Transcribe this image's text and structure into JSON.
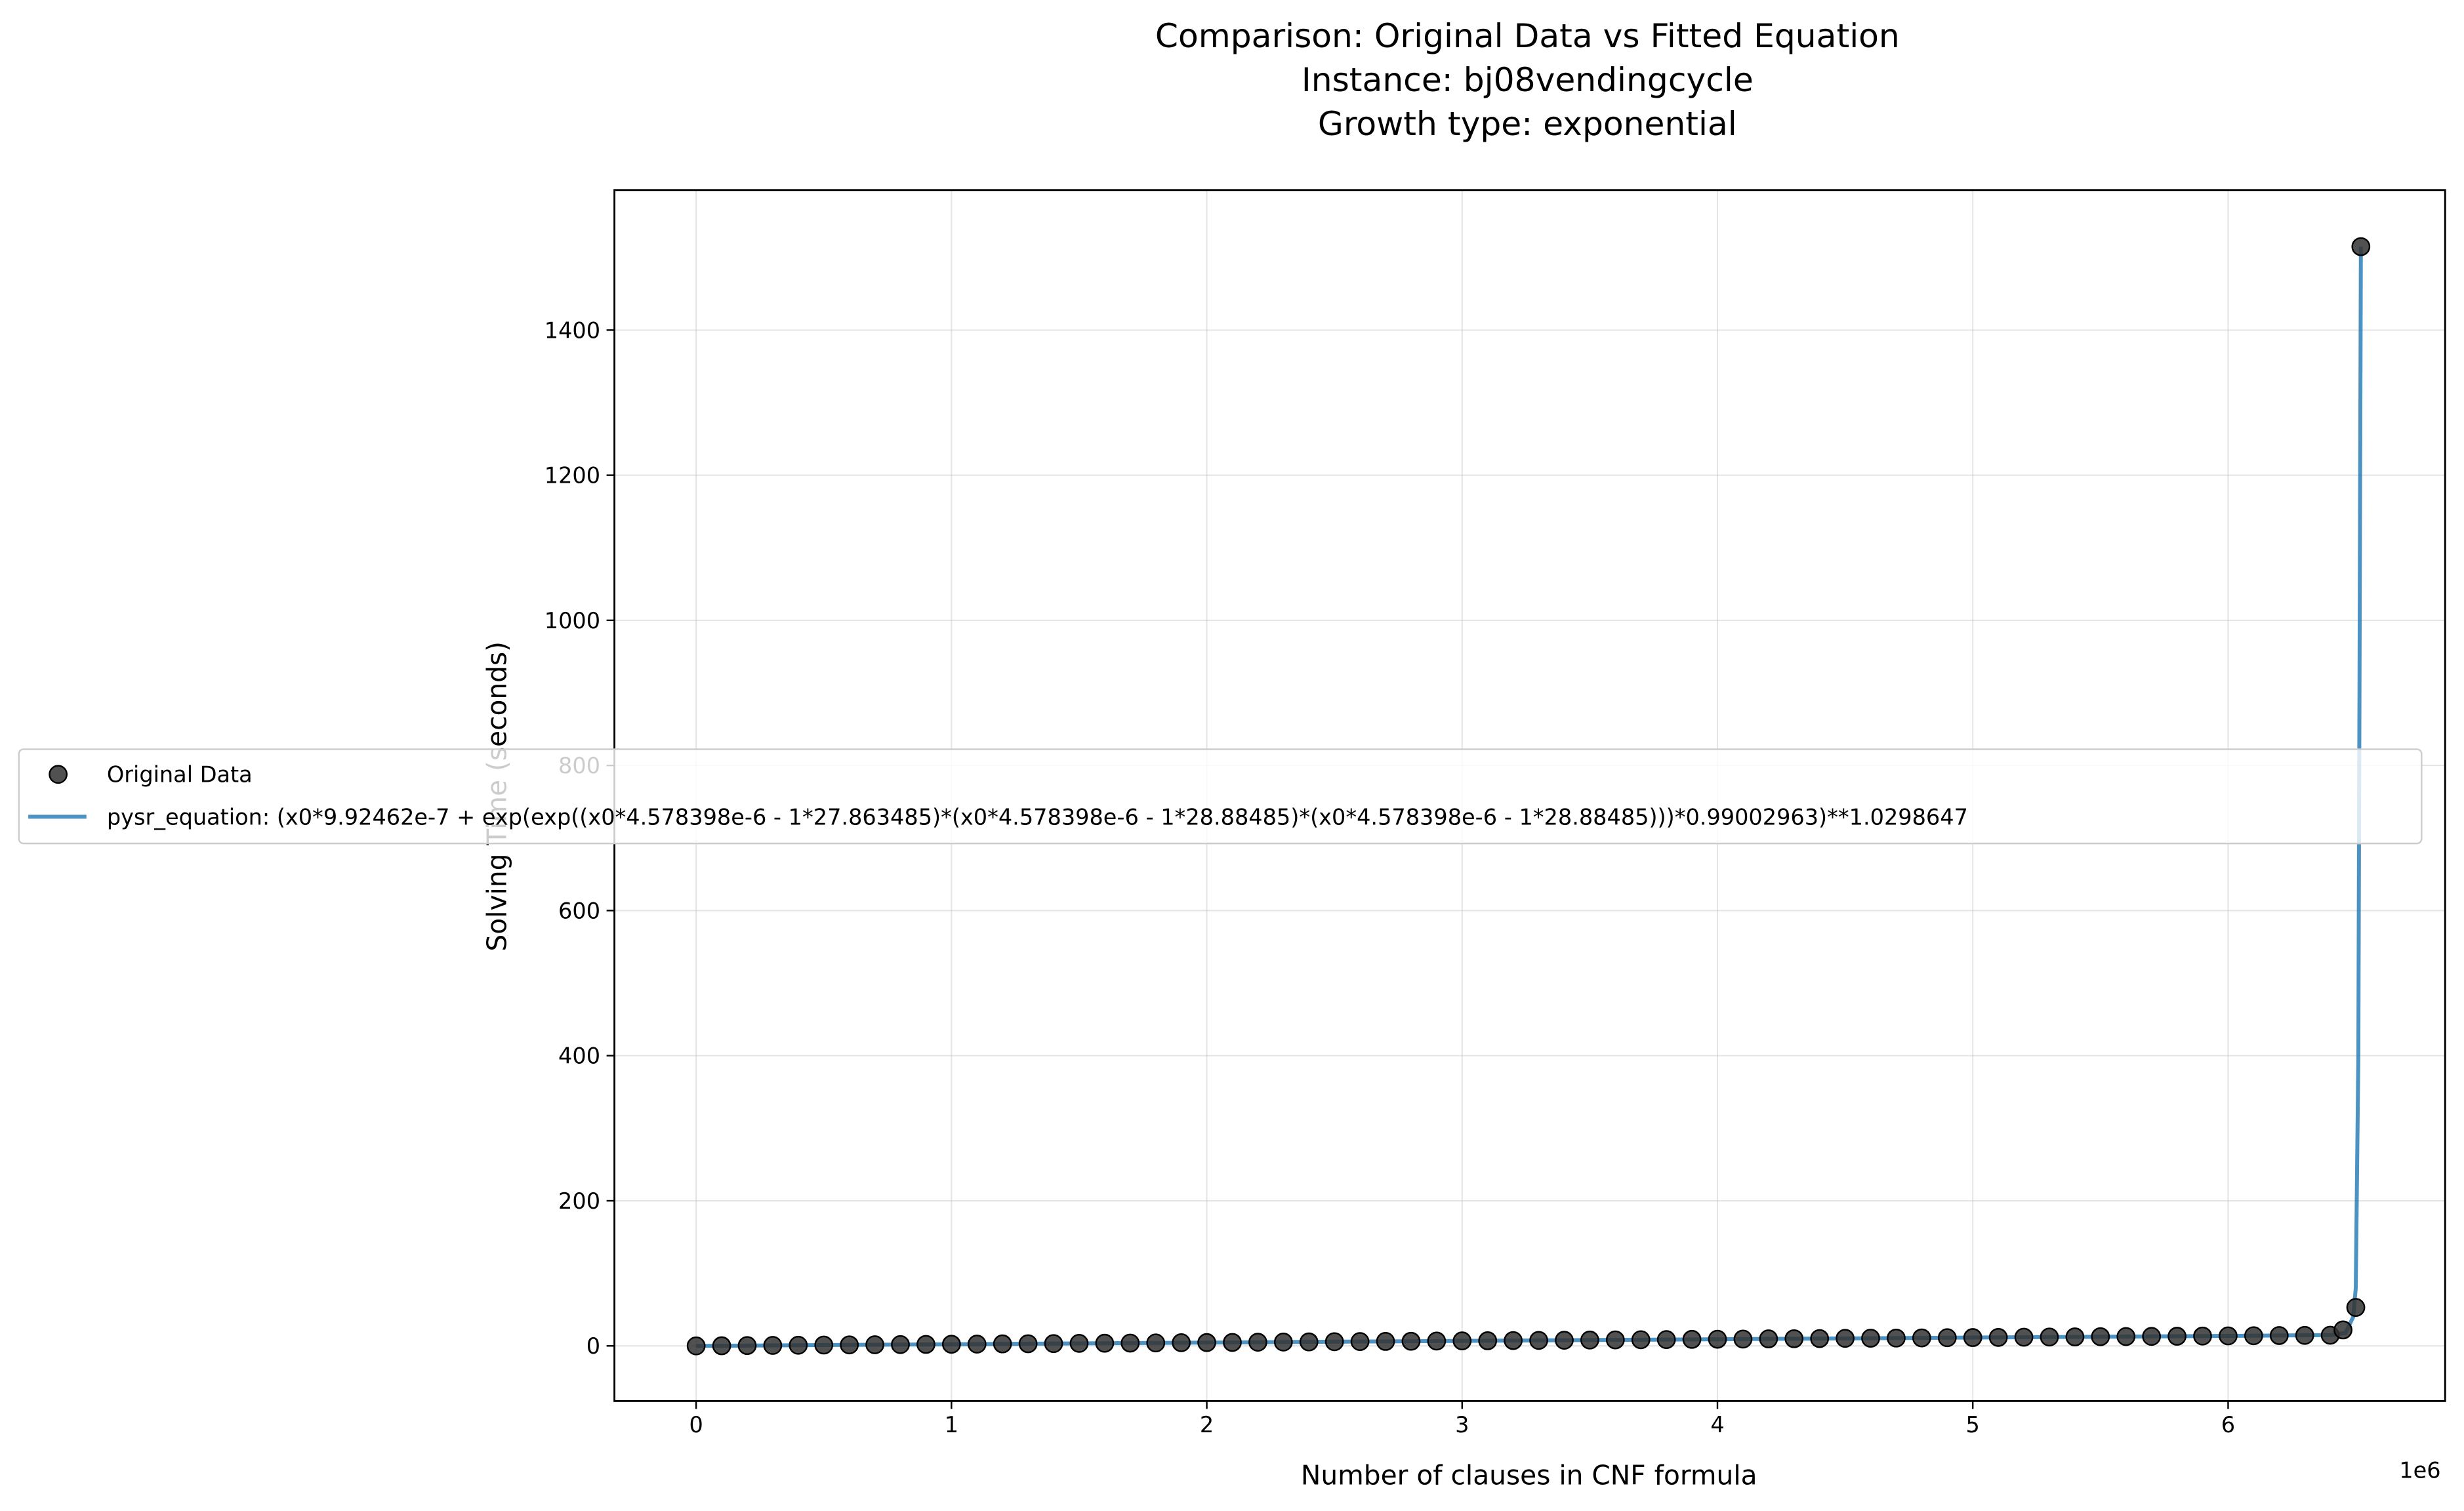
{
  "chart_data": {
    "type": "scatter",
    "title_lines": [
      "Comparison: Original Data vs Fitted Equation",
      "Instance: bj08vendingcycle",
      "Growth type: exponential"
    ],
    "x_label": "Number of clauses in CNF formula",
    "y_label": "Solving Time (seconds)",
    "x_offset_text": "1e6",
    "xlim": [
      -320000,
      6850000
    ],
    "ylim": [
      -76,
      1593
    ],
    "xticks": [
      {
        "value": 0,
        "label": "0"
      },
      {
        "value": 1000000,
        "label": "1"
      },
      {
        "value": 2000000,
        "label": "2"
      },
      {
        "value": 3000000,
        "label": "3"
      },
      {
        "value": 4000000,
        "label": "4"
      },
      {
        "value": 5000000,
        "label": "5"
      },
      {
        "value": 6000000,
        "label": "6"
      }
    ],
    "yticks": [
      0,
      200,
      400,
      600,
      800,
      1000,
      1200,
      1400
    ],
    "grid": true,
    "legend": "left",
    "series": [
      {
        "name": "Original Data",
        "type": "scatter",
        "color": "#333333",
        "x": [
          0,
          100000,
          200000,
          300000,
          400000,
          500000,
          600000,
          700000,
          800000,
          900000,
          1000000,
          1100000,
          1200000,
          1300000,
          1400000,
          1500000,
          1600000,
          1700000,
          1800000,
          1900000,
          2000000,
          2100000,
          2200000,
          2300000,
          2400000,
          2500000,
          2600000,
          2700000,
          2800000,
          2900000,
          3000000,
          3100000,
          3200000,
          3300000,
          3400000,
          3500000,
          3600000,
          3700000,
          3800000,
          3900000,
          4000000,
          4100000,
          4200000,
          4300000,
          4400000,
          4500000,
          4600000,
          4700000,
          4800000,
          4900000,
          5000000,
          5100000,
          5200000,
          5300000,
          5400000,
          5500000,
          5600000,
          5700000,
          5800000,
          5900000,
          6000000,
          6100000,
          6200000,
          6300000,
          6400000,
          6450000,
          6500000,
          6520000
        ],
        "values": [
          0,
          0.2,
          0.5,
          0.7,
          0.9,
          1.2,
          1.4,
          1.6,
          1.8,
          2.1,
          2.3,
          2.5,
          2.8,
          3.0,
          3.2,
          3.5,
          3.7,
          3.9,
          4.1,
          4.4,
          4.6,
          4.8,
          5.1,
          5.3,
          5.5,
          5.8,
          6.0,
          6.2,
          6.4,
          6.7,
          6.9,
          7.1,
          7.4,
          7.6,
          7.8,
          8.1,
          8.3,
          8.5,
          8.7,
          9.0,
          9.2,
          9.4,
          9.7,
          9.9,
          10.1,
          10.4,
          10.6,
          10.8,
          11.0,
          11.3,
          11.5,
          11.7,
          12.0,
          12.2,
          12.4,
          12.7,
          12.9,
          13.1,
          13.3,
          13.6,
          13.8,
          14.0,
          14.3,
          14.5,
          14.7,
          22,
          53,
          1515
        ]
      },
      {
        "name": "pysr_equation: (x0*9.92462e-7 + exp(exp((x0*4.578398e-6 - 1*27.863485)*(x0*4.578398e-6 - 1*28.88485)*(x0*4.578398e-6 - 1*28.88485)))*0.99002963)**1.0298647",
        "type": "line",
        "color": "#1f77b4",
        "x": [
          0,
          1000000,
          2000000,
          3000000,
          4000000,
          5000000,
          6000000,
          6400000,
          6460000,
          6490000,
          6500000,
          6510000,
          6520000
        ],
        "values": [
          0,
          2.3,
          4.6,
          6.9,
          9.2,
          11.5,
          13.8,
          14.9,
          18,
          40,
          80,
          400,
          1515
        ]
      }
    ]
  }
}
